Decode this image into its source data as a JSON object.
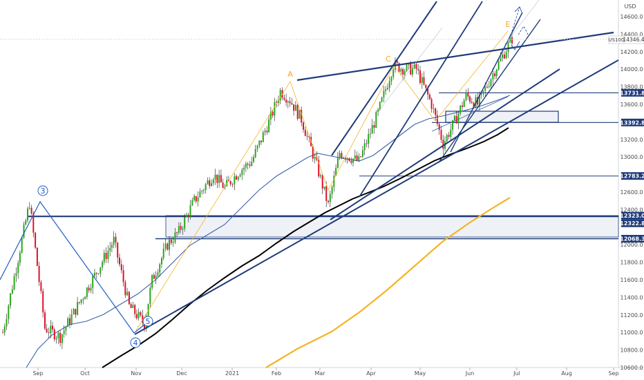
{
  "chart_data": {
    "type": "candlestick",
    "symbol_tag": "US100",
    "currency": "USD",
    "last_price": 14346.4,
    "y_ticks": [
      14600.0,
      14400.0,
      14200.0,
      14000.0,
      13800.0,
      13600.0,
      13400.0,
      13200.0,
      13000.0,
      12800.0,
      12600.0,
      12400.0,
      12000.0,
      11800.0,
      11600.0,
      11400.0,
      11200.0,
      11000.0,
      10800.0,
      10600.0
    ],
    "x_ticks": [
      "Sep",
      "Oct",
      "Nov",
      "Dec",
      "2021",
      "Feb",
      "Mar",
      "Apr",
      "May",
      "Jun",
      "Jul",
      "Aug",
      "Sep"
    ],
    "ylim": [
      10580,
      14820
    ],
    "levels": [
      13731.8,
      13392.8,
      12783.2,
      12323.0,
      12322.8,
      12068.3
    ],
    "wave_labels": [
      "3",
      "4",
      "5",
      "A",
      "C",
      "E"
    ],
    "colors": {
      "up": "#26a818",
      "down": "#e0102a",
      "level": "#1f3b7a",
      "ma_blue": "#3a5faa",
      "ma_black": "#000000",
      "ma_orange": "#f5b324",
      "zone": "#eef1f6"
    },
    "candle_path_anchors": [
      {
        "i": 0,
        "c": 11000
      },
      {
        "i": 14,
        "c": 12480
      },
      {
        "i": 22,
        "c": 11050
      },
      {
        "i": 30,
        "c": 10950
      },
      {
        "i": 48,
        "c": 11650
      },
      {
        "i": 58,
        "c": 12050
      },
      {
        "i": 66,
        "c": 11300
      },
      {
        "i": 74,
        "c": 11100
      },
      {
        "i": 78,
        "c": 11600
      },
      {
        "i": 86,
        "c": 12000
      },
      {
        "i": 92,
        "c": 12150
      },
      {
        "i": 100,
        "c": 12500
      },
      {
        "i": 110,
        "c": 12800
      },
      {
        "i": 116,
        "c": 12650
      },
      {
        "i": 124,
        "c": 12850
      },
      {
        "i": 130,
        "c": 12950
      },
      {
        "i": 140,
        "c": 13450
      },
      {
        "i": 145,
        "c": 13750
      },
      {
        "i": 150,
        "c": 13650
      },
      {
        "i": 156,
        "c": 13430
      },
      {
        "i": 164,
        "c": 12900
      },
      {
        "i": 170,
        "c": 12450
      },
      {
        "i": 176,
        "c": 13050
      },
      {
        "i": 186,
        "c": 12950
      },
      {
        "i": 196,
        "c": 13500
      },
      {
        "i": 204,
        "c": 14050
      },
      {
        "i": 210,
        "c": 14000
      },
      {
        "i": 216,
        "c": 14000
      },
      {
        "i": 224,
        "c": 13600
      },
      {
        "i": 230,
        "c": 13150
      },
      {
        "i": 236,
        "c": 13400
      },
      {
        "i": 242,
        "c": 13700
      },
      {
        "i": 248,
        "c": 13600
      },
      {
        "i": 256,
        "c": 13950
      },
      {
        "i": 266,
        "c": 14350
      }
    ]
  }
}
